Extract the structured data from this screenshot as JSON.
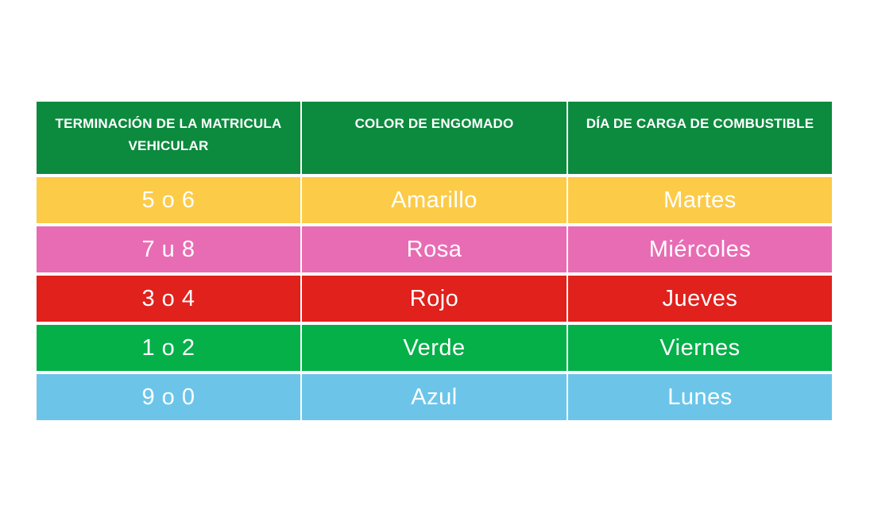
{
  "table": {
    "header_bg": "#0c8a3e",
    "headers": [
      "TERMINACIÓN DE LA MATRICULA VEHICULAR",
      "COLOR DE ENGOMADO",
      "DÍA DE CARGA DE COMBUSTIBLE"
    ],
    "rows": [
      {
        "terminacion": "5 o 6",
        "color": "Amarillo",
        "dia": "Martes",
        "bg": "#fccb48"
      },
      {
        "terminacion": "7 u 8",
        "color": "Rosa",
        "dia": "Miércoles",
        "bg": "#e86cb4"
      },
      {
        "terminacion": "3 o 4",
        "color": "Rojo",
        "dia": "Jueves",
        "bg": "#e0211c"
      },
      {
        "terminacion": "1 o 2",
        "color": "Verde",
        "dia": "Viernes",
        "bg": "#05b049"
      },
      {
        "terminacion": "9 o 0",
        "color": "Azul",
        "dia": "Lunes",
        "bg": "#6cc5e9"
      }
    ]
  }
}
